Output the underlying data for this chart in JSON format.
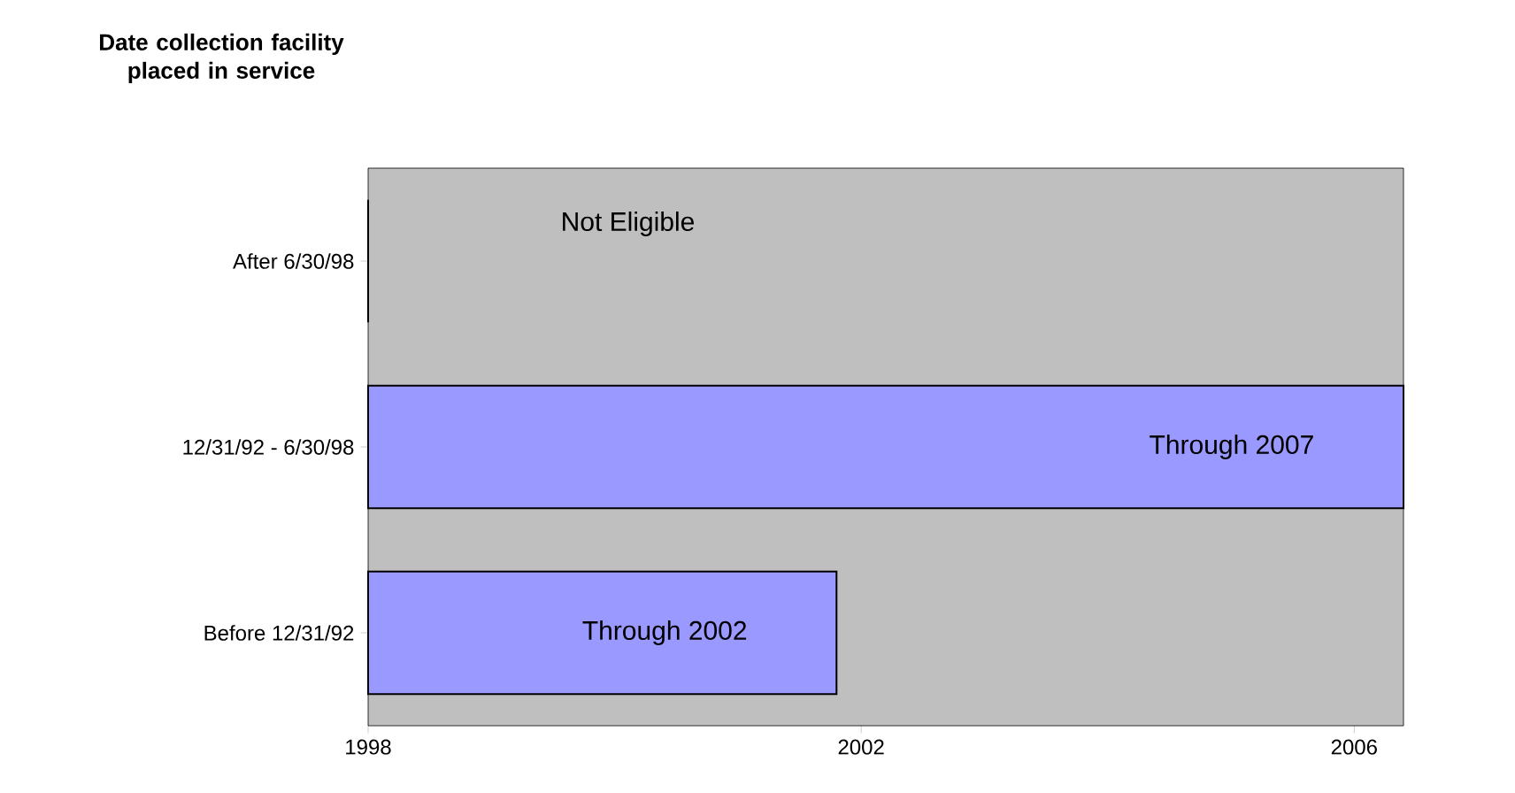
{
  "chart_data": {
    "type": "bar",
    "orientation": "horizontal",
    "ylabel": "Date collection facility placed in service",
    "categories": [
      "After 6/30/98",
      "12/31/92 - 6/30/98",
      "Before 12/31/92"
    ],
    "values": [
      1998,
      2006.4,
      2001.8
    ],
    "value_labels": [
      null,
      "Through 2007",
      "Through 2002"
    ],
    "annotations": [
      "Not Eligible"
    ],
    "color": "#9999ff",
    "xlim": [
      1998,
      2006.4
    ],
    "xticks": [
      1998,
      2002,
      2006
    ]
  }
}
